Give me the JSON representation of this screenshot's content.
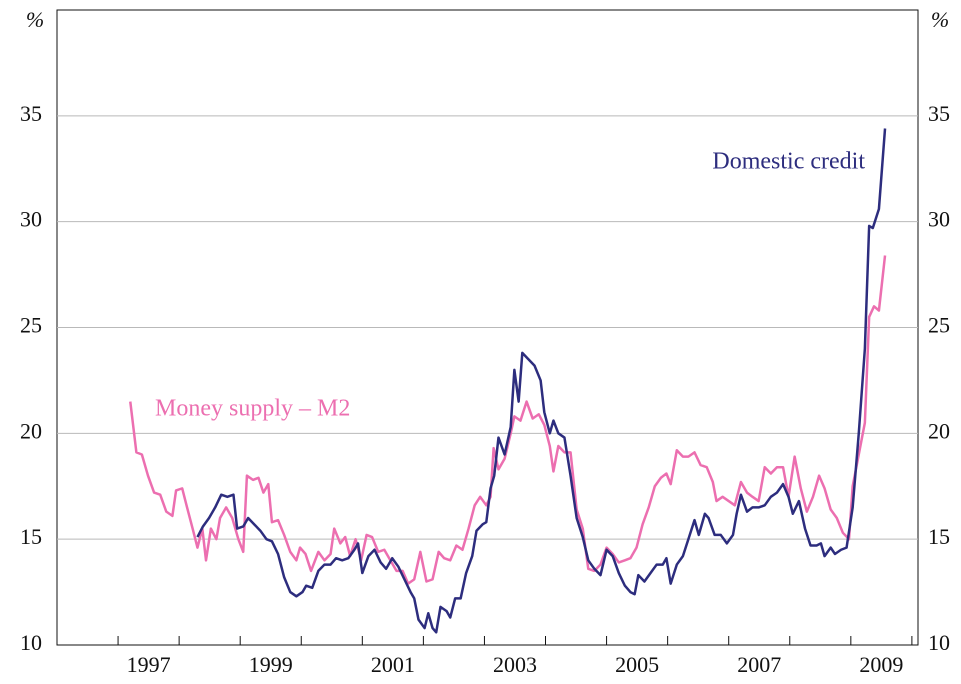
{
  "chart_data": {
    "type": "line",
    "ylabel": "%",
    "y2label": "%",
    "xlim": [
      1996,
      2010.1
    ],
    "xticks": [
      {
        "value": 1997.5,
        "label": "1997"
      },
      {
        "value": 1999.5,
        "label": "1999"
      },
      {
        "value": 2001.5,
        "label": "2001"
      },
      {
        "value": 2003.5,
        "label": "2003"
      },
      {
        "value": 2005.5,
        "label": "2005"
      },
      {
        "value": 2007.5,
        "label": "2007"
      },
      {
        "value": 2009.5,
        "label": "2009"
      }
    ],
    "xtick_marks": [
      1996,
      1997,
      1998,
      1999,
      2000,
      2001,
      2002,
      2003,
      2004,
      2005,
      2006,
      2007,
      2008,
      2009,
      2010
    ],
    "ylim": [
      10,
      40
    ],
    "yticks": [
      10,
      15,
      20,
      25,
      30,
      35
    ],
    "y2lim": [
      10,
      40
    ],
    "y2ticks": [
      10,
      15,
      20,
      25,
      30,
      35
    ],
    "grid": true,
    "series": [
      {
        "name": "Money supply – M2",
        "color": "#ec6fb0",
        "x": [
          1997.2,
          1997.3,
          1997.39,
          1997.49,
          1997.59,
          1997.69,
          1997.79,
          1997.89,
          1997.95,
          1998.05,
          1998.13,
          1998.23,
          1998.3,
          1998.38,
          1998.44,
          1998.52,
          1998.61,
          1998.67,
          1998.77,
          1998.87,
          1998.97,
          1999.05,
          1999.11,
          1999.21,
          1999.3,
          1999.38,
          1999.46,
          1999.52,
          1999.62,
          1999.72,
          1999.82,
          1999.92,
          1999.98,
          2000.07,
          2000.16,
          2000.28,
          2000.38,
          2000.48,
          2000.54,
          2000.64,
          2000.72,
          2000.8,
          2000.89,
          2000.98,
          2001.07,
          2001.16,
          2001.26,
          2001.36,
          2001.46,
          2001.56,
          2001.66,
          2001.75,
          2001.85,
          2001.95,
          2002.05,
          2002.15,
          2002.25,
          2002.34,
          2002.44,
          2002.54,
          2002.64,
          2002.74,
          2002.84,
          2002.93,
          2003.03,
          2003.1,
          2003.15,
          2003.23,
          2003.33,
          2003.43,
          2003.49,
          2003.59,
          2003.69,
          2003.79,
          2003.89,
          2003.98,
          2004.07,
          2004.13,
          2004.21,
          2004.31,
          2004.41,
          2004.51,
          2004.61,
          2004.7,
          2004.8,
          2004.9,
          2005.0,
          2005.1,
          2005.2,
          2005.3,
          2005.39,
          2005.49,
          2005.59,
          2005.69,
          2005.79,
          2005.89,
          2005.98,
          2006.05,
          2006.15,
          2006.25,
          2006.34,
          2006.44,
          2006.54,
          2006.64,
          2006.74,
          2006.8,
          2006.9,
          2007.0,
          2007.1,
          2007.2,
          2007.3,
          2007.39,
          2007.49,
          2007.59,
          2007.69,
          2007.79,
          2007.89,
          2007.98,
          2008.08,
          2008.18,
          2008.28,
          2008.38,
          2008.48,
          2008.57,
          2008.67,
          2008.77,
          2008.87,
          2008.97,
          2009.03,
          2009.13,
          2009.23,
          2009.3,
          2009.38,
          2009.46,
          2009.56
        ],
        "values": [
          21.5,
          19.1,
          19.0,
          18.0,
          17.2,
          17.1,
          16.3,
          16.1,
          17.3,
          17.4,
          16.5,
          15.4,
          14.6,
          15.5,
          14.0,
          15.5,
          15.0,
          16.0,
          16.5,
          16.0,
          15.0,
          14.4,
          18.0,
          17.8,
          17.9,
          17.2,
          17.6,
          15.8,
          15.9,
          15.2,
          14.4,
          14.0,
          14.6,
          14.3,
          13.5,
          14.4,
          14.0,
          14.3,
          15.5,
          14.8,
          15.1,
          14.2,
          15.0,
          14.0,
          15.2,
          15.1,
          14.4,
          14.5,
          14.0,
          13.5,
          13.5,
          12.9,
          13.1,
          14.4,
          13.0,
          13.1,
          14.4,
          14.1,
          14.0,
          14.7,
          14.5,
          15.5,
          16.6,
          17.0,
          16.6,
          17.0,
          19.3,
          18.3,
          18.8,
          20.0,
          20.8,
          20.6,
          21.5,
          20.7,
          20.9,
          20.4,
          19.4,
          18.2,
          19.4,
          19.1,
          19.1,
          16.4,
          15.5,
          13.6,
          13.5,
          13.8,
          14.6,
          14.3,
          13.9,
          14.0,
          14.1,
          14.6,
          15.7,
          16.5,
          17.5,
          17.9,
          18.1,
          17.6,
          19.2,
          18.9,
          18.9,
          19.1,
          18.5,
          18.4,
          17.7,
          16.8,
          17.0,
          16.8,
          16.6,
          17.7,
          17.2,
          17.0,
          16.8,
          18.4,
          18.1,
          18.4,
          18.4,
          17.0,
          18.9,
          17.4,
          16.3,
          17.0,
          18.0,
          17.4,
          16.4,
          16.0,
          15.3,
          15.0,
          17.5,
          19.0,
          20.5,
          25.5,
          26.0,
          25.8,
          28.4
        ]
      },
      {
        "name": "Domestic credit",
        "color": "#2d2d7e",
        "x": [
          1998.3,
          1998.39,
          1998.49,
          1998.59,
          1998.69,
          1998.79,
          1998.89,
          1998.95,
          1999.05,
          1999.13,
          1999.23,
          1999.33,
          1999.43,
          1999.52,
          1999.62,
          1999.72,
          1999.82,
          1999.92,
          2000.02,
          2000.08,
          2000.18,
          2000.28,
          2000.38,
          2000.48,
          2000.57,
          2000.67,
          2000.77,
          2000.87,
          2000.93,
          2001.0,
          2001.1,
          2001.2,
          2001.3,
          2001.39,
          2001.49,
          2001.59,
          2001.69,
          2001.79,
          2001.85,
          2001.92,
          2002.02,
          2002.08,
          2002.15,
          2002.21,
          2002.28,
          2002.38,
          2002.44,
          2002.52,
          2002.61,
          2002.7,
          2002.8,
          2002.87,
          2002.97,
          2003.03,
          2003.1,
          2003.16,
          2003.23,
          2003.33,
          2003.43,
          2003.49,
          2003.56,
          2003.62,
          2003.72,
          2003.82,
          2003.92,
          2003.98,
          2004.07,
          2004.13,
          2004.21,
          2004.31,
          2004.41,
          2004.51,
          2004.61,
          2004.7,
          2004.8,
          2004.9,
          2005.0,
          2005.1,
          2005.2,
          2005.3,
          2005.39,
          2005.46,
          2005.52,
          2005.62,
          2005.72,
          2005.82,
          2005.92,
          2005.98,
          2006.05,
          2006.15,
          2006.25,
          2006.34,
          2006.44,
          2006.51,
          2006.61,
          2006.67,
          2006.77,
          2006.87,
          2006.97,
          2007.07,
          2007.13,
          2007.2,
          2007.3,
          2007.39,
          2007.49,
          2007.59,
          2007.69,
          2007.79,
          2007.89,
          2007.98,
          2008.05,
          2008.15,
          2008.25,
          2008.34,
          2008.44,
          2008.51,
          2008.57,
          2008.67,
          2008.74,
          2008.84,
          2008.93,
          2009.03,
          2009.13,
          2009.23,
          2009.3,
          2009.36,
          2009.46,
          2009.56
        ],
        "values": [
          15.1,
          15.6,
          16.0,
          16.5,
          17.1,
          17.0,
          17.1,
          15.5,
          15.6,
          16.0,
          15.7,
          15.4,
          15.0,
          14.9,
          14.3,
          13.2,
          12.5,
          12.3,
          12.5,
          12.8,
          12.7,
          13.5,
          13.8,
          13.8,
          14.1,
          14.0,
          14.1,
          14.5,
          14.8,
          13.4,
          14.2,
          14.5,
          13.9,
          13.6,
          14.1,
          13.7,
          13.1,
          12.5,
          12.2,
          11.2,
          10.8,
          11.5,
          10.8,
          10.6,
          11.8,
          11.6,
          11.3,
          12.2,
          12.2,
          13.4,
          14.2,
          15.4,
          15.7,
          15.8,
          17.4,
          18.0,
          19.8,
          19.0,
          20.3,
          23.0,
          21.5,
          23.8,
          23.5,
          23.2,
          22.5,
          21.0,
          20.0,
          20.6,
          20.0,
          19.8,
          18.0,
          16.0,
          15.1,
          14.0,
          13.6,
          13.3,
          14.5,
          14.2,
          13.4,
          12.8,
          12.5,
          12.4,
          13.3,
          13.0,
          13.4,
          13.8,
          13.8,
          14.1,
          12.9,
          13.8,
          14.2,
          15.0,
          15.9,
          15.2,
          16.2,
          16.0,
          15.2,
          15.2,
          14.8,
          15.2,
          16.2,
          17.1,
          16.3,
          16.5,
          16.5,
          16.6,
          17.0,
          17.2,
          17.6,
          17.0,
          16.2,
          16.8,
          15.5,
          14.7,
          14.7,
          14.8,
          14.2,
          14.6,
          14.3,
          14.5,
          14.6,
          16.5,
          20.0,
          24.0,
          29.8,
          29.7,
          30.6,
          34.4
        ]
      }
    ]
  }
}
